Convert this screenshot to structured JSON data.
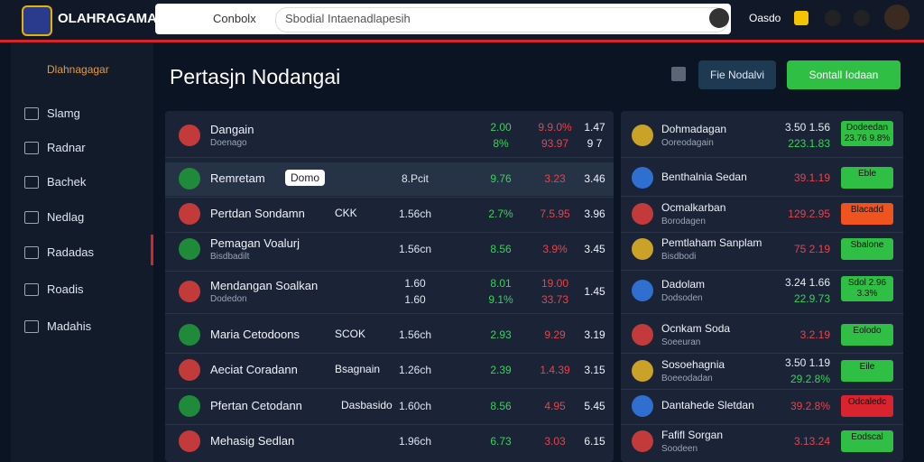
{
  "header": {
    "brand": "OLAHRAGAMA",
    "tab": "Conbolx",
    "search": "Sbodial Intaenadlapesih",
    "user_label": "Oasdo"
  },
  "sidebar": {
    "heading": "Dlahnagagar",
    "items": [
      "Slamg",
      "Radnar",
      "Bachek",
      "Nedlag",
      "Radadas",
      "Roadis",
      "Madahis"
    ]
  },
  "main": {
    "title": "Pertasjn Nodangai",
    "button_secondary": "Fie Nodalvi",
    "button_primary": "Sontall Iodaan"
  },
  "left_table": {
    "rows": [
      {
        "name": "Dangain",
        "sub": "Doenago",
        "cells": [
          [],
          [
            "2.00",
            "8%"
          ],
          [
            "9.9.0%",
            "93.97"
          ],
          [
            "1.47",
            "9 7"
          ]
        ]
      },
      {
        "name": "Remretam",
        "tag": "Domo",
        "cells": [
          [
            "8.Pcit"
          ],
          [
            "9.76"
          ],
          [
            "3.23"
          ],
          [
            "3.46"
          ]
        ]
      },
      {
        "name": "Pertdan Sondamn",
        "tag": "CKK",
        "cells": [
          [
            "1.56ch"
          ],
          [
            "2.7%"
          ],
          [
            "7.5.95"
          ],
          [
            "3.96"
          ]
        ]
      },
      {
        "name": "Pemagan Voalurj",
        "sub": "Bisdbadilt",
        "cells": [
          [
            "1.56cn"
          ],
          [
            "8.56"
          ],
          [
            "3.9%"
          ],
          [
            "3.45"
          ]
        ]
      },
      {
        "name": "Mendangan Soalkan",
        "sub": "Dodedon",
        "cells": [
          [
            "1.60",
            "1.60"
          ],
          [
            "8.01",
            "9.1%"
          ],
          [
            "19.00",
            "33.73"
          ],
          [
            "1.45"
          ]
        ]
      },
      {
        "name": "Maria Cetodoons",
        "tag": "SCOK",
        "cells": [
          [
            "1.56ch"
          ],
          [
            "2.93"
          ],
          [
            "9.29"
          ],
          [
            "3.19"
          ]
        ]
      },
      {
        "name": "Aeciat Coradann",
        "tag": "Bsagnain",
        "cells": [
          [
            "1.26ch"
          ],
          [
            "2.39"
          ],
          [
            "1.4.39"
          ],
          [
            "3.15"
          ]
        ]
      },
      {
        "name": "Pfertan Cetodann",
        "tag": "Dasbasido",
        "cells": [
          [
            "1.60ch"
          ],
          [
            "8.56"
          ],
          [
            "4.95"
          ],
          [
            "5.45"
          ]
        ]
      },
      {
        "name": "Mehasig Sedlan",
        "cells": [
          [
            "1.96ch"
          ],
          [
            "6.73"
          ],
          [
            "3.03"
          ],
          [
            "6.15"
          ]
        ]
      }
    ]
  },
  "right_table": {
    "rows": [
      {
        "name": "Dohmadagan",
        "sub": "Ooreodagain",
        "odds": [
          "3.50 1.56",
          "223.1.83"
        ],
        "button": "Dodeedan 23.76 9.8%",
        "button_color": "#2fbf45"
      },
      {
        "name": "Benthalnia Sedan",
        "odds": [
          "39.1.19"
        ],
        "button": "Eble",
        "button_color": "#2fbf45"
      },
      {
        "name": "Ocmalkarban",
        "sub": "Borodagen",
        "odds": [
          "129.2.95"
        ],
        "button": "Blacadd",
        "button_color": "#f0541e"
      },
      {
        "name": "Pemtlaham Sanplam",
        "sub": "Bisdbodi",
        "odds": [
          "75 2.19"
        ],
        "button": "Sbalone",
        "button_color": "#2fbf45"
      },
      {
        "name": "Dadolam",
        "sub": "Dodsoden",
        "odds": [
          "3.24 1.66",
          "22.9.73"
        ],
        "button": "Sdol 2.96 3.3%",
        "button_color": "#2fbf45"
      },
      {
        "name": "Ocnkam Soda",
        "sub": "Soeeuran",
        "odds": [
          "3.2.19"
        ],
        "button": "Eolodo",
        "button_color": "#2fbf45"
      },
      {
        "name": "Sosoehagnia",
        "sub": "Boeeodadan",
        "odds": [
          "3.50 1.19",
          "29.2.8%"
        ],
        "button": "Eile",
        "button_color": "#2fbf45"
      },
      {
        "name": "Dantahede Sletdan",
        "odds": [
          "39.2.8%"
        ],
        "button": "Odcaledc",
        "button_color": "#d9232e"
      },
      {
        "name": "Fafifl Sorgan",
        "sub": "Soodeen",
        "odds": [
          "3.13.24"
        ],
        "button": "Eodscal",
        "button_color": "#2fbf45"
      }
    ]
  }
}
